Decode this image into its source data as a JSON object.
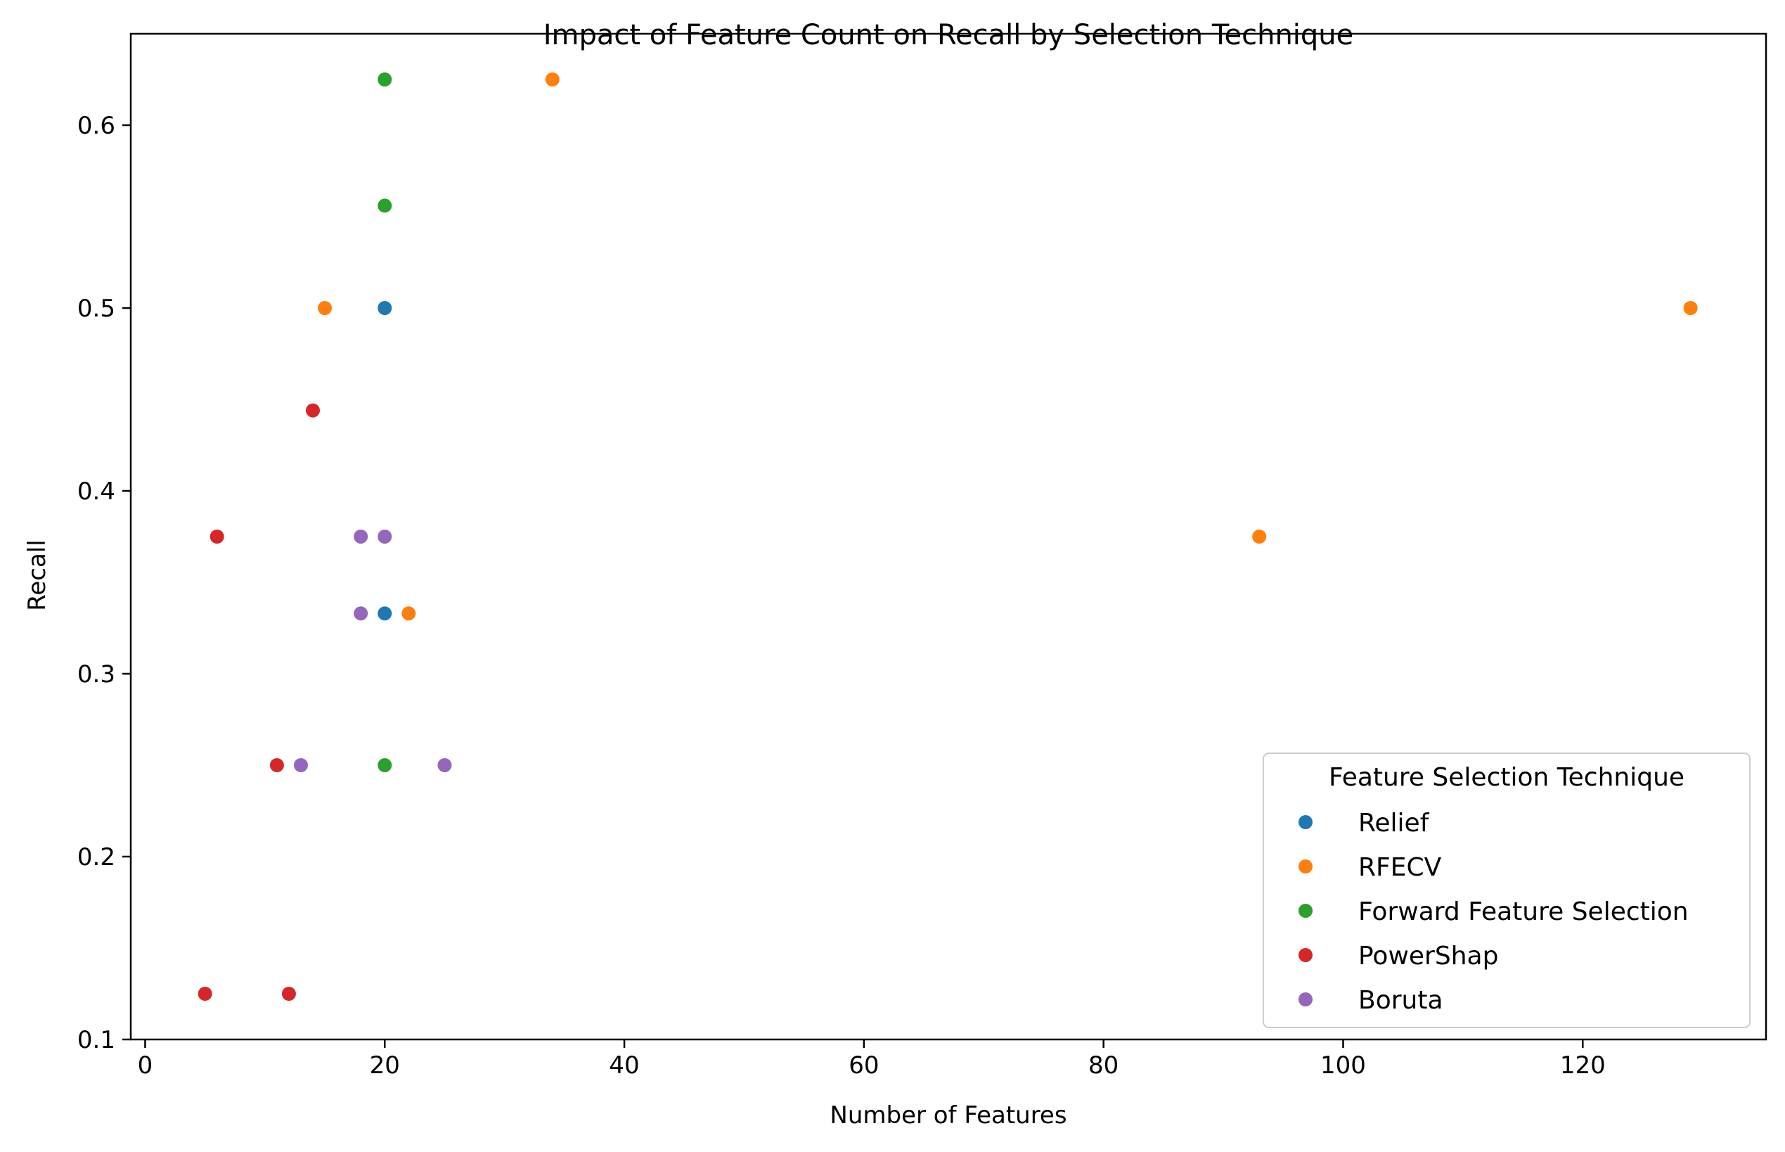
{
  "chart_data": {
    "type": "scatter",
    "title": "Impact of Feature Count on Recall by Selection Technique",
    "xlabel": "Number of Features",
    "ylabel": "Recall",
    "xlim": [
      -1.2,
      135.3
    ],
    "ylim": [
      0.1,
      0.65
    ],
    "xticks": [
      0,
      20,
      40,
      60,
      80,
      100,
      120
    ],
    "yticks": [
      0.1,
      0.2,
      0.3,
      0.4,
      0.5,
      0.6
    ],
    "ytick_labels": [
      "0.1",
      "0.2",
      "0.3",
      "0.4",
      "0.5",
      "0.6"
    ],
    "grid": false,
    "legend": {
      "title": "Feature Selection Technique",
      "position": "lower-right"
    },
    "series": [
      {
        "name": "Relief",
        "color": "#1f77b4",
        "points": [
          [
            20,
            0.5
          ],
          [
            20,
            0.333
          ]
        ]
      },
      {
        "name": "RFECV",
        "color": "#ff7f0e",
        "points": [
          [
            34,
            0.625
          ],
          [
            15,
            0.5
          ],
          [
            129,
            0.5
          ],
          [
            93,
            0.375
          ],
          [
            22,
            0.333
          ]
        ]
      },
      {
        "name": "Forward Feature Selection",
        "color": "#2ca02c",
        "points": [
          [
            20,
            0.625
          ],
          [
            20,
            0.556
          ],
          [
            20,
            0.25
          ]
        ]
      },
      {
        "name": "PowerShap",
        "color": "#d62728",
        "points": [
          [
            14,
            0.444
          ],
          [
            6,
            0.375
          ],
          [
            11,
            0.25
          ],
          [
            5,
            0.125
          ],
          [
            12,
            0.125
          ]
        ]
      },
      {
        "name": "Boruta",
        "color": "#9467bd",
        "points": [
          [
            18,
            0.375
          ],
          [
            20,
            0.375
          ],
          [
            18,
            0.333
          ],
          [
            13,
            0.25
          ],
          [
            25,
            0.25
          ]
        ]
      }
    ]
  }
}
